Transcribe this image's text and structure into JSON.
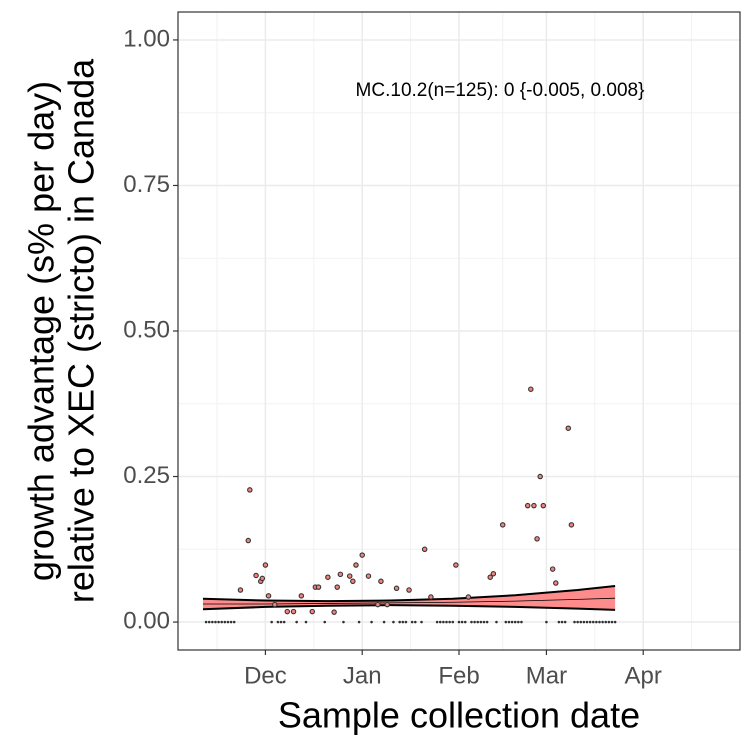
{
  "chart_data": {
    "type": "scatter",
    "annotation": "MC.10.2(n=125): 0 {-0.005, 0.008}",
    "x_label": "Sample collection date",
    "y_label": [
      "growth advantage (s% per day)",
      "relative to XEC (stricto) in Canada"
    ],
    "xlim": [
      -28,
      152
    ],
    "ylim": [
      -0.048,
      1.048
    ],
    "xticks": [
      {
        "value": 0,
        "label": "Dec"
      },
      {
        "value": 31,
        "label": "Jan"
      },
      {
        "value": 62,
        "label": "Feb"
      },
      {
        "value": 90,
        "label": "Mar"
      },
      {
        "value": 121,
        "label": "Apr"
      }
    ],
    "yticks": [
      {
        "value": 0,
        "label": "0.00"
      },
      {
        "value": 0.25,
        "label": "0.25"
      },
      {
        "value": 0.5,
        "label": "0.50"
      },
      {
        "value": 0.75,
        "label": "0.75"
      },
      {
        "value": 1,
        "label": "1.00"
      }
    ],
    "grid": true,
    "color": "#f4837d",
    "x": [
      -8,
      -5,
      -5.5,
      -3,
      -1.5,
      -1,
      0,
      1,
      3,
      7,
      9,
      11.5,
      15,
      16,
      17,
      20,
      22,
      23,
      24,
      27,
      28,
      29,
      31,
      33,
      36,
      37,
      39,
      42,
      46,
      51,
      53,
      61,
      65,
      72,
      73,
      76,
      84,
      85,
      86,
      87,
      88,
      89,
      92,
      93,
      97,
      98,
      -19,
      -18,
      -17,
      -16,
      -15,
      -14,
      -13,
      -12,
      -11,
      -10,
      2,
      4,
      5,
      6,
      10,
      13,
      19,
      25,
      30,
      34,
      38,
      41,
      43,
      44,
      45,
      47,
      48,
      50,
      55,
      56,
      57,
      58,
      59,
      60,
      62,
      63,
      64,
      66,
      67,
      68,
      69,
      70,
      71,
      74,
      77,
      78,
      79,
      80,
      81,
      82,
      90,
      94,
      95,
      96,
      99,
      100,
      101,
      102,
      103,
      104,
      105,
      106,
      107,
      108,
      109,
      110,
      111,
      112
    ],
    "values": [
      0.055,
      0.227,
      0.14,
      0.08,
      0.07,
      0.075,
      0.098,
      0.045,
      0.03,
      0.018,
      0.018,
      0.045,
      0.018,
      0.06,
      0.06,
      0.077,
      0.017,
      0.06,
      0.082,
      0.079,
      0.07,
      0.098,
      0.115,
      0.079,
      0.03,
      0.07,
      0.03,
      0.058,
      0.055,
      0.125,
      0.043,
      0.098,
      0.043,
      0.077,
      0.083,
      0.167,
      0.2,
      0.4,
      0.2,
      0.143,
      0.25,
      0.2,
      0.091,
      0.067,
      0.333,
      0.167,
      0,
      0,
      0,
      0,
      0,
      0,
      0,
      0,
      0,
      0,
      0,
      0,
      0,
      0,
      0,
      0,
      0,
      0,
      0,
      0,
      0,
      0,
      0,
      0,
      0,
      0,
      0,
      0,
      0,
      0,
      0,
      0,
      0,
      0,
      0,
      0,
      0,
      0,
      0,
      0,
      0,
      0,
      0,
      0,
      0,
      0,
      0,
      0,
      0,
      0,
      0,
      0,
      0,
      0,
      0,
      0,
      0,
      0,
      0,
      0,
      0,
      0,
      0,
      0,
      0,
      0,
      0,
      0
    ],
    "fit": {
      "color": "#ff7f7f",
      "x": [
        -20,
        0,
        20,
        40,
        60,
        80,
        100,
        112
      ],
      "values": [
        0.031,
        0.031,
        0.032,
        0.033,
        0.034,
        0.036,
        0.039,
        0.041
      ],
      "lower": [
        0.022,
        0.026,
        0.028,
        0.029,
        0.028,
        0.026,
        0.023,
        0.021
      ],
      "upper": [
        0.04,
        0.037,
        0.036,
        0.037,
        0.04,
        0.046,
        0.055,
        0.062
      ]
    }
  }
}
